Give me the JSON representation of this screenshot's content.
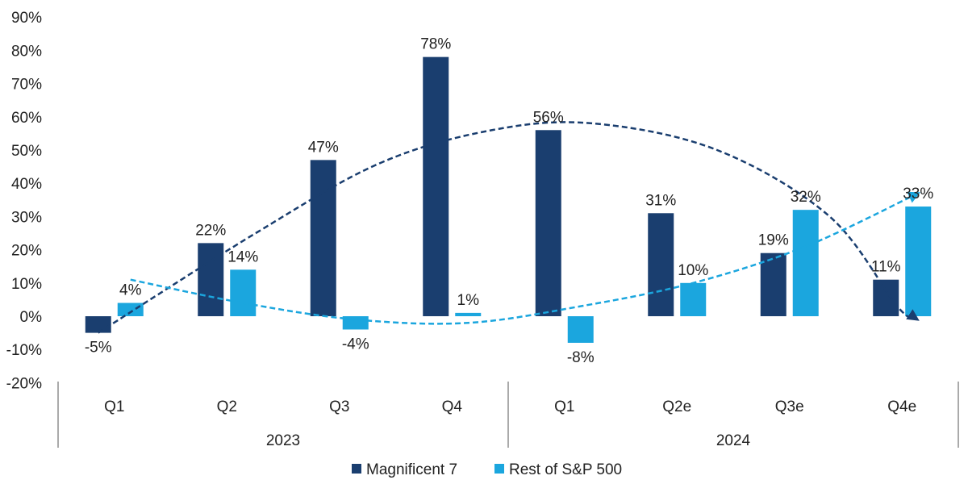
{
  "chart_data": {
    "type": "bar",
    "categories": [
      "Q1",
      "Q2",
      "Q3",
      "Q4",
      "Q1",
      "Q2e",
      "Q3e",
      "Q4e"
    ],
    "groups": [
      {
        "label": "2023",
        "span": [
          0,
          3
        ]
      },
      {
        "label": "2024",
        "span": [
          4,
          7
        ]
      }
    ],
    "series": [
      {
        "name": "Magnificent 7",
        "color": "#1a3e6f",
        "values": [
          -5,
          22,
          47,
          78,
          56,
          31,
          19,
          11
        ],
        "labels": [
          "-5%",
          "22%",
          "47%",
          "78%",
          "56%",
          "31%",
          "19%",
          "11%"
        ]
      },
      {
        "name": "Rest of S&P 500",
        "color": "#1ba6de",
        "values": [
          4,
          14,
          -4,
          1,
          -8,
          10,
          32,
          33
        ],
        "labels": [
          "4%",
          "14%",
          "-4%",
          "1%",
          "-8%",
          "10%",
          "32%",
          "33%"
        ]
      }
    ],
    "trendlines": [
      {
        "series": "Magnificent 7",
        "style": "dashed",
        "color": "#1a3e6f",
        "points": [
          [
            0,
            -5
          ],
          [
            1.4,
            25
          ],
          [
            2.5,
            46
          ],
          [
            3.5,
            56
          ],
          [
            4.4,
            58
          ],
          [
            5.5,
            50
          ],
          [
            6.5,
            30
          ],
          [
            7.1,
            3
          ],
          [
            7.28,
            -1
          ]
        ],
        "arrow": true
      },
      {
        "series": "Rest of S&P 500",
        "style": "dashed",
        "color": "#1ba6de",
        "points": [
          [
            0,
            11
          ],
          [
            1,
            4
          ],
          [
            2,
            -1
          ],
          [
            3,
            -2
          ],
          [
            4,
            3
          ],
          [
            5,
            10
          ],
          [
            6,
            21
          ],
          [
            7,
            37
          ]
        ],
        "arrow": true
      }
    ],
    "yticks": [
      "90%",
      "80%",
      "70%",
      "60%",
      "50%",
      "40%",
      "30%",
      "20%",
      "10%",
      "0%",
      "-10%",
      "-20%"
    ],
    "ylim": [
      -20,
      90
    ],
    "ytick_values": [
      90,
      80,
      70,
      60,
      50,
      40,
      30,
      20,
      10,
      0,
      -10,
      -20
    ],
    "legend_position": "bottom",
    "title": "",
    "xlabel": "",
    "ylabel": ""
  }
}
